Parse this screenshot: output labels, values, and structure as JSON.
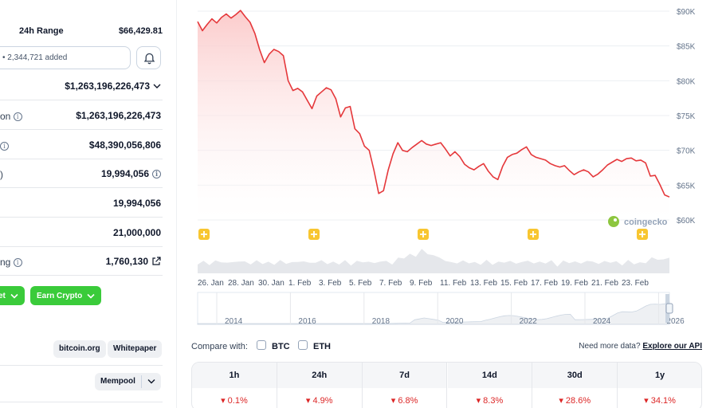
{
  "left": {
    "range_label": "24h Range",
    "range_high": "$66,429.81",
    "watchlist_text": "• 2,344,721 added",
    "stats": [
      {
        "label": "",
        "value": "$1,263,196,226,473",
        "suffix": "chevron"
      },
      {
        "label": "on",
        "value": "$1,263,196,226,473",
        "label_info": true
      },
      {
        "label": "",
        "value": "$48,390,056,806",
        "label_info": true
      },
      {
        "label": "",
        "value": "19,994,056",
        "value_info": true,
        "label_paren": true
      },
      {
        "label": "",
        "value": "19,994,056"
      },
      {
        "label": "",
        "value": "21,000,000"
      },
      {
        "label": "ng",
        "value": "1,760,130",
        "label_info": true,
        "value_link": true
      }
    ],
    "buttons": {
      "wallet": "et",
      "earn": "Earn Crypto"
    },
    "links": {
      "website": "bitcoin.org",
      "whitepaper": "Whitepaper",
      "explorer": "Mempool"
    }
  },
  "chart": {
    "y_ticks": [
      "$90K",
      "$85K",
      "$80K",
      "$75K",
      "$70K",
      "$65K",
      "$60K"
    ],
    "x_ticks": [
      "26. Jan",
      "28. Jan",
      "30. Jan",
      "1. Feb",
      "3. Feb",
      "5. Feb",
      "7. Feb",
      "9. Feb",
      "11. Feb",
      "13. Feb",
      "15. Feb",
      "17. Feb",
      "19. Feb",
      "21. Feb",
      "23. Feb"
    ],
    "navigator_years": [
      "2014",
      "2016",
      "2018",
      "2020",
      "2022",
      "2024",
      "2026"
    ],
    "watermark": "coingecko",
    "line_color": "#e5383b",
    "fill_color": "#fde2e2"
  },
  "chart_data": {
    "type": "area",
    "x_unit": "index",
    "y_unit": "USD",
    "ylim": [
      60000,
      90000
    ],
    "values": [
      88500,
      87200,
      88100,
      88900,
      88300,
      89100,
      89600,
      89000,
      89500,
      90100,
      89200,
      88400,
      86800,
      84500,
      82600,
      83800,
      84500,
      84200,
      83600,
      80000,
      78600,
      78900,
      78400,
      77200,
      76000,
      77800,
      78400,
      79000,
      78700,
      77400,
      74800,
      76100,
      76300,
      73100,
      72400,
      70600,
      70000,
      67100,
      63800,
      64200,
      67200,
      69500,
      71100,
      70000,
      69800,
      70400,
      70900,
      71400,
      70900,
      70700,
      70900,
      71100,
      70200,
      69200,
      69800,
      69100,
      68000,
      67500,
      67200,
      67700,
      68100,
      67000,
      66200,
      65800,
      67700,
      69000,
      69400,
      69600,
      70100,
      70500,
      69400,
      69000,
      68800,
      68600,
      68100,
      67800,
      67600,
      67800,
      67100,
      66500,
      66900,
      67200,
      66900,
      66200,
      66600,
      67200,
      67900,
      68300,
      68700,
      68400,
      68800,
      68900,
      68500,
      68600,
      68200,
      66300,
      66400,
      65100,
      63600,
      63300
    ]
  },
  "compare": {
    "label": "Compare with:",
    "options": [
      "BTC",
      "ETH"
    ],
    "more_text": "Need more data?",
    "more_link": "Explore our API"
  },
  "performance": {
    "headers": [
      "1h",
      "24h",
      "7d",
      "14d",
      "30d",
      "1y"
    ],
    "values": [
      "0.1%",
      "4.9%",
      "6.8%",
      "8.3%",
      "28.6%",
      "34.1%"
    ],
    "down_color": "#dc2626"
  }
}
